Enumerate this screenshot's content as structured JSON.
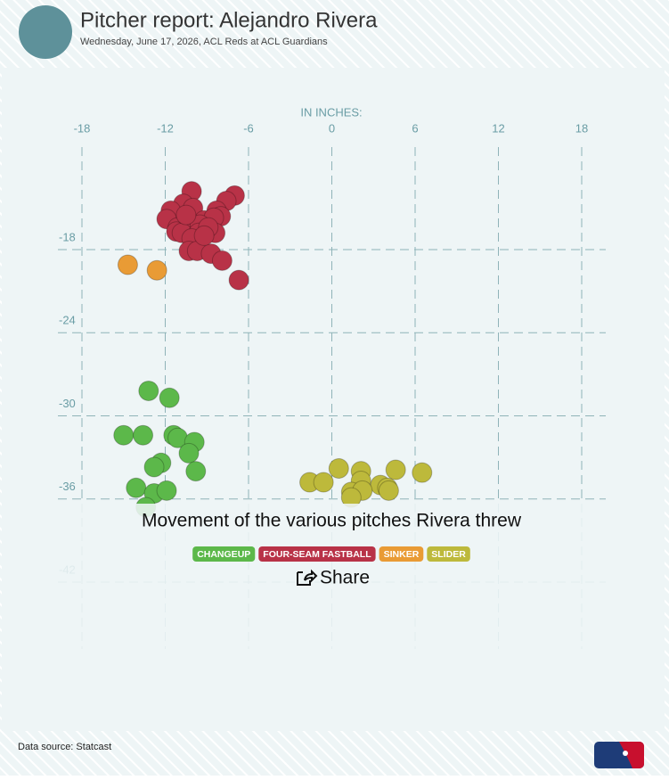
{
  "header": {
    "title": "Pitcher report: Alejandro Rivera",
    "subtitle": "Wednesday, June 17, 2026, ACL Reds at ACL Guardians"
  },
  "chart_data": {
    "type": "scatter",
    "title": "Movement of the various pitches Rivera threw",
    "x_label": "IN INCHES:",
    "xlim": [
      -18,
      18
    ],
    "xticks": [
      -18,
      -12,
      -6,
      0,
      6,
      12,
      18
    ],
    "ylim": [
      -46.5,
      -10.5
    ],
    "yticks": [
      -18,
      -24,
      -30,
      -36,
      -42
    ],
    "grid": true,
    "series": [
      {
        "name": "CHANGEUP",
        "color": "#5cb84a",
        "x": [
          -13.2,
          -11.7,
          -15.0,
          -13.6,
          -11.4,
          -11.1,
          -9.9,
          -10.3,
          -12.3,
          -12.8,
          -9.8,
          -14.1,
          -12.8,
          -11.9,
          -13.4
        ],
        "values": [
          -28.2,
          -28.7,
          -31.4,
          -31.4,
          -31.4,
          -31.6,
          -31.9,
          -32.7,
          -33.4,
          -33.7,
          -34.0,
          -35.2,
          -35.6,
          -35.4,
          -36.6
        ]
      },
      {
        "name": "FOUR-SEAM FASTBALL",
        "color": "#b83247",
        "x": [
          -10.1,
          -7.0,
          -7.6,
          -10.7,
          -11.6,
          -10.0,
          -8.3,
          -8.0,
          -11.9,
          -9.2,
          -8.5,
          -11.1,
          -10.3,
          -9.5,
          -11.2,
          -10.8,
          -9.6,
          -8.4,
          -8.9,
          -10.1,
          -10.3,
          -9.7,
          -8.7,
          -7.9,
          -6.7,
          -10.5,
          -9.2
        ],
        "values": [
          -13.8,
          -14.1,
          -14.5,
          -14.7,
          -15.2,
          -15.0,
          -15.2,
          -15.6,
          -15.8,
          -15.9,
          -15.7,
          -16.4,
          -16.3,
          -16.2,
          -16.7,
          -16.8,
          -16.8,
          -16.8,
          -16.4,
          -17.2,
          -18.1,
          -18.1,
          -18.3,
          -18.8,
          -20.2,
          -15.5,
          -17.0
        ]
      },
      {
        "name": "SINKER",
        "color": "#e99b35",
        "x": [
          -14.7,
          -12.6
        ],
        "values": [
          -19.1,
          -19.5
        ]
      },
      {
        "name": "SLIDER",
        "color": "#bdb93b",
        "x": [
          0.5,
          2.1,
          4.6,
          6.5,
          -1.6,
          -0.6,
          2.1,
          3.5,
          4.0,
          4.1,
          1.4,
          2.2,
          1.4
        ],
        "values": [
          -33.8,
          -34.0,
          -33.9,
          -34.1,
          -34.8,
          -34.8,
          -34.7,
          -35.0,
          -35.2,
          -35.4,
          -35.5,
          -35.4,
          -35.9
        ]
      }
    ]
  },
  "share": "Share",
  "footer": {
    "source": "Data source: Statcast"
  }
}
